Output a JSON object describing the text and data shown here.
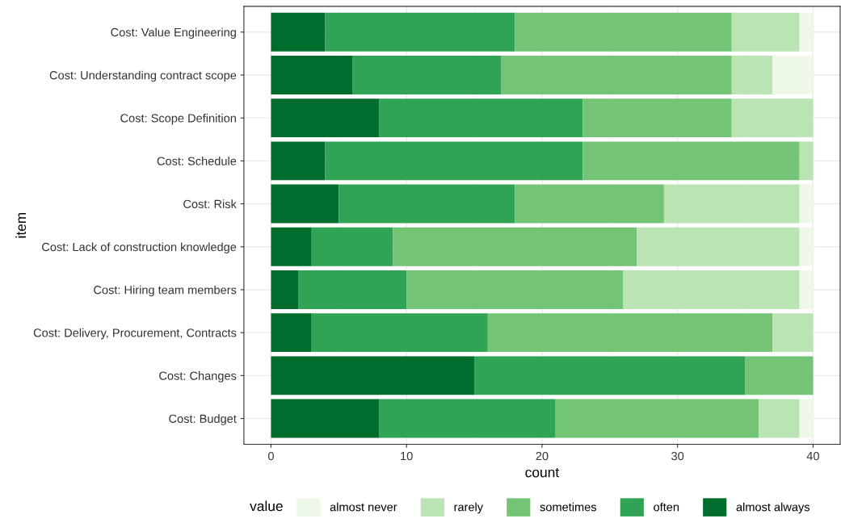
{
  "chart_data": {
    "type": "bar",
    "orientation": "horizontal",
    "stacked": true,
    "xlabel": "count",
    "ylabel": "item",
    "legend_title": "value",
    "legend": "bottom",
    "grid": true,
    "categories": [
      "Cost: Value Engineering",
      "Cost: Understanding contract scope",
      "Cost: Scope Definition",
      "Cost: Schedule",
      "Cost: Risk",
      "Cost: Lack of construction knowledge",
      "Cost: Hiring team members",
      "Cost: Delivery, Procurement, Contracts",
      "Cost: Changes",
      "Cost: Budget"
    ],
    "xlim": [
      -2,
      42
    ],
    "xticks": [
      0,
      10,
      20,
      30,
      40
    ],
    "series": [
      {
        "name": "almost always",
        "color": "#006d2c",
        "values": [
          4,
          6,
          8,
          4,
          5,
          3,
          2,
          3,
          15,
          8
        ]
      },
      {
        "name": "often",
        "color": "#31a354",
        "values": [
          14,
          11,
          15,
          19,
          13,
          6,
          8,
          13,
          20,
          13
        ]
      },
      {
        "name": "sometimes",
        "color": "#74c476",
        "values": [
          16,
          17,
          11,
          16,
          11,
          18,
          16,
          21,
          5,
          15
        ]
      },
      {
        "name": "rarely",
        "color": "#bae4b3",
        "values": [
          5,
          3,
          6,
          1,
          10,
          12,
          13,
          3,
          0,
          3
        ]
      },
      {
        "name": "almost never",
        "color": "#edf8e9",
        "values": [
          1,
          3,
          0,
          0,
          1,
          1,
          1,
          0,
          0,
          1
        ]
      }
    ]
  }
}
